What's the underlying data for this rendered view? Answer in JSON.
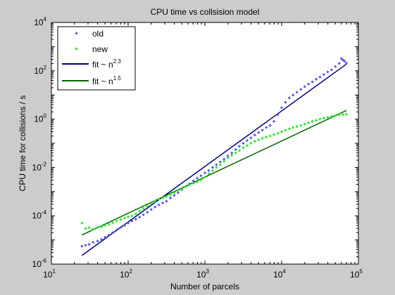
{
  "chart_data": {
    "type": "scatter",
    "title": "CPU time vs collsision model",
    "xlabel": "Number of parcels",
    "ylabel": "CPU time for collisions / s",
    "x_scale": "log",
    "y_scale": "log",
    "xlim": [
      10,
      100000
    ],
    "ylim": [
      1e-06,
      10000
    ],
    "x_ticks": [
      {
        "value": 10,
        "base": "10",
        "exp": "1"
      },
      {
        "value": 100,
        "base": "10",
        "exp": "2"
      },
      {
        "value": 1000,
        "base": "10",
        "exp": "3"
      },
      {
        "value": 10000,
        "base": "10",
        "exp": "4"
      },
      {
        "value": 100000,
        "base": "10",
        "exp": "5"
      }
    ],
    "y_ticks": [
      {
        "value": 1e-06,
        "base": "10",
        "exp": "-6"
      },
      {
        "value": 0.0001,
        "base": "10",
        "exp": "-4"
      },
      {
        "value": 0.01,
        "base": "10",
        "exp": "-2"
      },
      {
        "value": 1,
        "base": "10",
        "exp": "0"
      },
      {
        "value": 100,
        "base": "10",
        "exp": "2"
      },
      {
        "value": 10000,
        "base": "10",
        "exp": "4"
      }
    ],
    "grid": false,
    "legend_position": "top-left",
    "series": [
      {
        "name": "old",
        "kind": "points",
        "color": "#5555ee",
        "x": [
          25,
          28,
          31,
          35,
          40,
          45,
          50,
          56,
          63,
          71,
          80,
          90,
          100,
          112,
          126,
          141,
          158,
          178,
          200,
          224,
          251,
          282,
          316,
          355,
          398,
          447,
          501,
          562,
          631,
          708,
          794,
          891,
          1000,
          1122,
          1259,
          1413,
          1585,
          1778,
          1995,
          2239,
          2512,
          2818,
          3162,
          3548,
          3981,
          4467,
          5012,
          5623,
          6310,
          7079,
          7943,
          8913,
          10000,
          11220,
          12589,
          14125,
          15849,
          17783,
          19953,
          22387,
          25119,
          28184,
          31623,
          35481,
          39811,
          44668,
          50119,
          56234,
          60000,
          63096,
          66000,
          70000
        ],
        "y": [
          5.5e-06,
          6e-06,
          6.5e-06,
          8e-06,
          9e-06,
          1.05e-05,
          1.3e-05,
          1.6e-05,
          2e-05,
          2.6e-05,
          3.3e-05,
          4e-05,
          5e-05,
          6e-05,
          7.2e-05,
          8.8e-05,
          0.00011,
          0.00014,
          0.00018,
          0.00023,
          0.00028,
          0.00034,
          0.0004,
          0.00055,
          0.0007,
          0.0009,
          0.0012,
          0.0016,
          0.0021,
          0.0028,
          0.0036,
          0.0045,
          0.006,
          0.0075,
          0.01,
          0.013,
          0.017,
          0.022,
          0.03,
          0.04,
          0.055,
          0.075,
          0.1,
          0.13,
          0.17,
          0.22,
          0.28,
          0.35,
          0.45,
          0.55,
          0.8,
          1.5,
          3,
          5,
          7.5,
          10,
          13,
          17,
          22,
          28,
          35,
          45,
          55,
          70,
          90,
          110,
          150,
          200,
          320,
          280,
          250,
          210
        ]
      },
      {
        "name": "new",
        "kind": "points",
        "color": "#22ee22",
        "x": [
          25,
          28,
          31,
          35,
          40,
          45,
          50,
          56,
          63,
          71,
          80,
          90,
          100,
          112,
          126,
          141,
          158,
          178,
          200,
          224,
          251,
          282,
          316,
          355,
          398,
          447,
          501,
          562,
          631,
          708,
          794,
          891,
          1000,
          1122,
          1259,
          1413,
          1585,
          1778,
          1995,
          2239,
          2512,
          2818,
          3162,
          3548,
          3981,
          4467,
          5012,
          5623,
          6310,
          7079,
          7943,
          8913,
          10000,
          11220,
          12589,
          14125,
          15849,
          17783,
          19953,
          22387,
          25119,
          28184,
          31623,
          35481,
          39811,
          44668,
          50119,
          56234,
          63096,
          70000
        ],
        "y": [
          5e-05,
          3e-05,
          3.2e-05,
          2.8e-05,
          3.3e-05,
          3.5e-05,
          4e-05,
          4.5e-05,
          5.2e-05,
          6e-05,
          7e-05,
          8e-05,
          9e-05,
          0.0001,
          0.00012,
          0.00016,
          0.0002,
          0.00025,
          0.00032,
          0.0004,
          0.00048,
          0.00055,
          0.00062,
          0.00075,
          0.0009,
          0.0011,
          0.0013,
          0.0016,
          0.0019,
          0.0022,
          0.0025,
          0.003,
          0.004,
          0.0055,
          0.0075,
          0.01,
          0.013,
          0.018,
          0.025,
          0.032,
          0.04,
          0.05,
          0.065,
          0.08,
          0.1,
          0.12,
          0.14,
          0.16,
          0.18,
          0.2,
          0.23,
          0.26,
          0.3,
          0.35,
          0.4,
          0.45,
          0.5,
          0.55,
          0.62,
          0.7,
          0.8,
          0.9,
          1.0,
          1.1,
          1.2,
          1.3,
          1.4,
          1.5,
          1.55,
          1.6
        ]
      },
      {
        "name": "fit ~ n",
        "name_exponent": "2.3",
        "kind": "line",
        "color": "#000080",
        "x": [
          25,
          70000
        ],
        "y": [
          2.3e-06,
          190
        ]
      },
      {
        "name": "fit ~ n",
        "name_exponent": "1.5",
        "kind": "line",
        "color": "#006400",
        "x": [
          25,
          70000
        ],
        "y": [
          1.6e-05,
          2.3
        ]
      }
    ]
  }
}
